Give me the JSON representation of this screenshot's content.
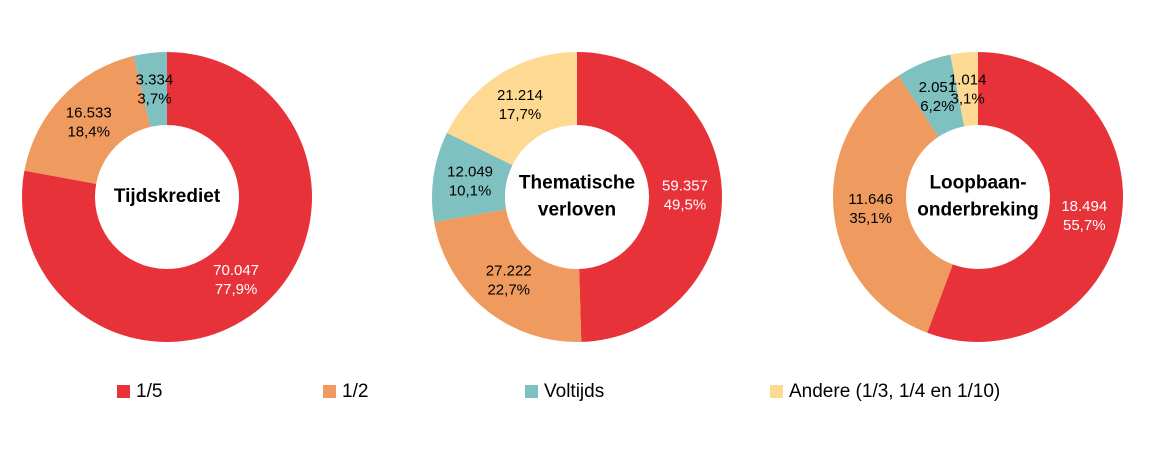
{
  "chart_data": [
    {
      "type": "pie",
      "title": [
        "Tijdskrediet"
      ],
      "categories": [
        "1/5",
        "1/2",
        "Voltijds",
        "Andere (1/3, 1/4 en 1/10)"
      ],
      "colors": [
        "#e8323a",
        "#ef9a5e",
        "#7fc1c0",
        "#fdd992"
      ],
      "values": [
        70047,
        16533,
        3334,
        null
      ],
      "value_labels": [
        "70.047",
        "16.533",
        "3.334",
        null
      ],
      "percents": [
        77.9,
        18.4,
        3.7,
        null
      ],
      "percent_labels": [
        "77,9%",
        "18,4%",
        "3,7%",
        null
      ]
    },
    {
      "type": "pie",
      "title": [
        "Thematische",
        "verloven"
      ],
      "categories": [
        "1/5",
        "1/2",
        "Voltijds",
        "Andere (1/3, 1/4 en 1/10)"
      ],
      "colors": [
        "#e8323a",
        "#ef9a5e",
        "#7fc1c0",
        "#fdd992"
      ],
      "values": [
        59357,
        27222,
        12049,
        21214
      ],
      "value_labels": [
        "59.357",
        "27.222",
        "12.049",
        "21.214"
      ],
      "percents": [
        49.5,
        22.7,
        10.1,
        17.7
      ],
      "percent_labels": [
        "49,5%",
        "22,7%",
        "10,1%",
        "17,7%"
      ]
    },
    {
      "type": "pie",
      "title": [
        "Loopbaan-",
        "onderbreking"
      ],
      "categories": [
        "1/5",
        "1/2",
        "Voltijds",
        "Andere (1/3, 1/4 en 1/10)"
      ],
      "colors": [
        "#e8323a",
        "#ef9a5e",
        "#7fc1c0",
        "#fdd992"
      ],
      "values": [
        18494,
        11646,
        2051,
        1014
      ],
      "value_labels": [
        "18.494",
        "11.646",
        "2.051",
        "1.014"
      ],
      "percents": [
        55.7,
        35.1,
        6.2,
        3.1
      ],
      "percent_labels": [
        "55,7%",
        "35,1%",
        "6,2%",
        "3,1%"
      ]
    }
  ]
}
